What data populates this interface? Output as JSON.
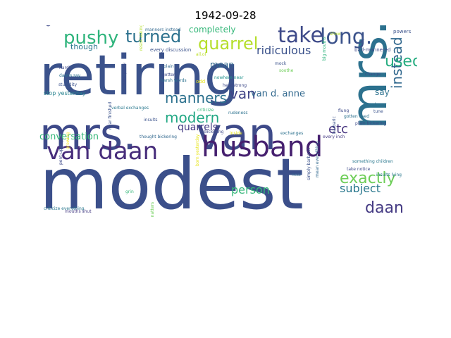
{
  "title": "1942-09-28",
  "palette": "viridis",
  "words": [
    {
      "text": "modest",
      "color": "#3b4f8a"
    },
    {
      "text": "retiring",
      "color": "#3b528b"
    },
    {
      "text": "mrs.",
      "color": "#2c718e"
    },
    {
      "text": "mrs.",
      "color": "#3e4a89"
    },
    {
      "text": "van",
      "color": "#3e4a89"
    },
    {
      "text": "van daan",
      "color": "#472d7b"
    },
    {
      "text": "husband",
      "color": "#46206f"
    },
    {
      "text": "pushy",
      "color": "#2fb47c"
    },
    {
      "text": "turned",
      "color": "#2c718e"
    },
    {
      "text": "quarrel",
      "color": "#b5de2b"
    },
    {
      "text": "take",
      "color": "#3e4a89"
    },
    {
      "text": "long.",
      "color": "#3b528b"
    },
    {
      "text": "exactly",
      "color": "#6ece58"
    },
    {
      "text": "daan",
      "color": "#443a83"
    },
    {
      "text": "instead",
      "color": "#31688e"
    },
    {
      "text": "used",
      "color": "#27ad81"
    },
    {
      "text": "manners",
      "color": "#2c718e"
    },
    {
      "text": "modern",
      "color": "#22a884"
    },
    {
      "text": "van",
      "color": "#414487"
    },
    {
      "text": "ridiculous",
      "color": "#3b528b"
    },
    {
      "text": "etc",
      "color": "#46337e"
    },
    {
      "text": "person",
      "color": "#35b779"
    },
    {
      "text": "subject",
      "color": "#2a788e"
    },
    {
      "text": "van d. anne",
      "color": "#31688e"
    },
    {
      "text": "quarrels",
      "color": "#443a83"
    },
    {
      "text": "conversation",
      "color": "#35b779"
    },
    {
      "text": "completely",
      "color": "#35b779"
    },
    {
      "text": "mean",
      "color": "#31688e"
    },
    {
      "text": "say",
      "color": "#2c718e"
    },
    {
      "text": "though",
      "color": "#2a788e"
    },
    {
      "text": "easily",
      "color": "#3e4a89"
    },
    {
      "text": "stop yesterday",
      "color": "#26828e"
    },
    {
      "text": "every discussion",
      "color": "#3b528b"
    },
    {
      "text": "manners instead",
      "color": "#31688e"
    },
    {
      "text": "bad-mannered",
      "color": "#3e4a89"
    },
    {
      "text": "powers",
      "color": "#3b528b"
    },
    {
      "text": "show",
      "color": "#b5de2b"
    },
    {
      "text": "all.ol",
      "color": "#bddf26"
    },
    {
      "text": "nowhere near",
      "color": "#21918c"
    },
    {
      "text": "headstrong",
      "color": "#3e4a89"
    },
    {
      "text": "rudeness",
      "color": "#2c718e"
    },
    {
      "text": "inside",
      "color": "#e7e419"
    },
    {
      "text": "exchanges",
      "color": "#2c718e"
    },
    {
      "text": "every inch",
      "color": "#443a83"
    },
    {
      "text": "criticize",
      "color": "#35b779"
    },
    {
      "text": "insults",
      "color": "#3b528b"
    },
    {
      "text": "verbal exchanges",
      "color": "#2a788e"
    },
    {
      "text": "thought bickering",
      "color": "#31688e"
    },
    {
      "text": "bickering",
      "color": "#3e4a89"
    },
    {
      "text": "harsh",
      "color": "#3e4a89"
    },
    {
      "text": "daans say",
      "color": "#2c718e"
    },
    {
      "text": "stupidity",
      "color": "#3b528b"
    },
    {
      "text": "criticize everything",
      "color": "#2a788e"
    },
    {
      "text": "verbal",
      "color": "#3b528b"
    },
    {
      "text": "mouths shut",
      "color": "#443a83"
    },
    {
      "text": "born",
      "color": "#3b528b"
    },
    {
      "text": "near",
      "color": "#31688e"
    },
    {
      "text": "grin",
      "color": "#35b779"
    },
    {
      "text": "petty matters",
      "color": "#6ece58"
    },
    {
      "text": "near finished",
      "color": "#3b528b"
    },
    {
      "text": "take place",
      "color": "#3e4a89"
    },
    {
      "text": "plain",
      "color": "#31688e"
    },
    {
      "text": "gotten",
      "color": "#3e4a89"
    },
    {
      "text": "harsh words",
      "color": "#2c718e"
    },
    {
      "text": "odd",
      "color": "#e7e419"
    },
    {
      "text": "mock",
      "color": "#3b528b"
    },
    {
      "text": "soothe",
      "color": "#6ece58"
    },
    {
      "text": "flung",
      "color": "#3e4a89"
    },
    {
      "text": "gotten used",
      "color": "#2c718e"
    },
    {
      "text": "plain bickering",
      "color": "#3e4a89"
    },
    {
      "text": "outgrew",
      "color": "#2c718e"
    },
    {
      "text": "tune",
      "color": "#3b528b"
    },
    {
      "text": "change",
      "color": "#3e4a89"
    },
    {
      "text": "big mouths",
      "color": "#2fb47c"
    },
    {
      "text": "barbaric",
      "color": "#3b528b"
    },
    {
      "text": "something children",
      "color": "#2a788e"
    },
    {
      "text": "take notice",
      "color": "#3e4a89"
    },
    {
      "text": "simply barbaric",
      "color": "#3b528b"
    },
    {
      "text": "mean everything",
      "color": "#31688e"
    },
    {
      "text": "insults lying",
      "color": "#2a788e"
    },
    {
      "text": "pent-up rage",
      "color": "#3e4a89"
    },
    {
      "text": "growing",
      "color": "#fde725"
    },
    {
      "text": "born yesterday",
      "color": "#e7e419"
    },
    {
      "text": "resist asking",
      "color": "#b5de2b"
    }
  ]
}
